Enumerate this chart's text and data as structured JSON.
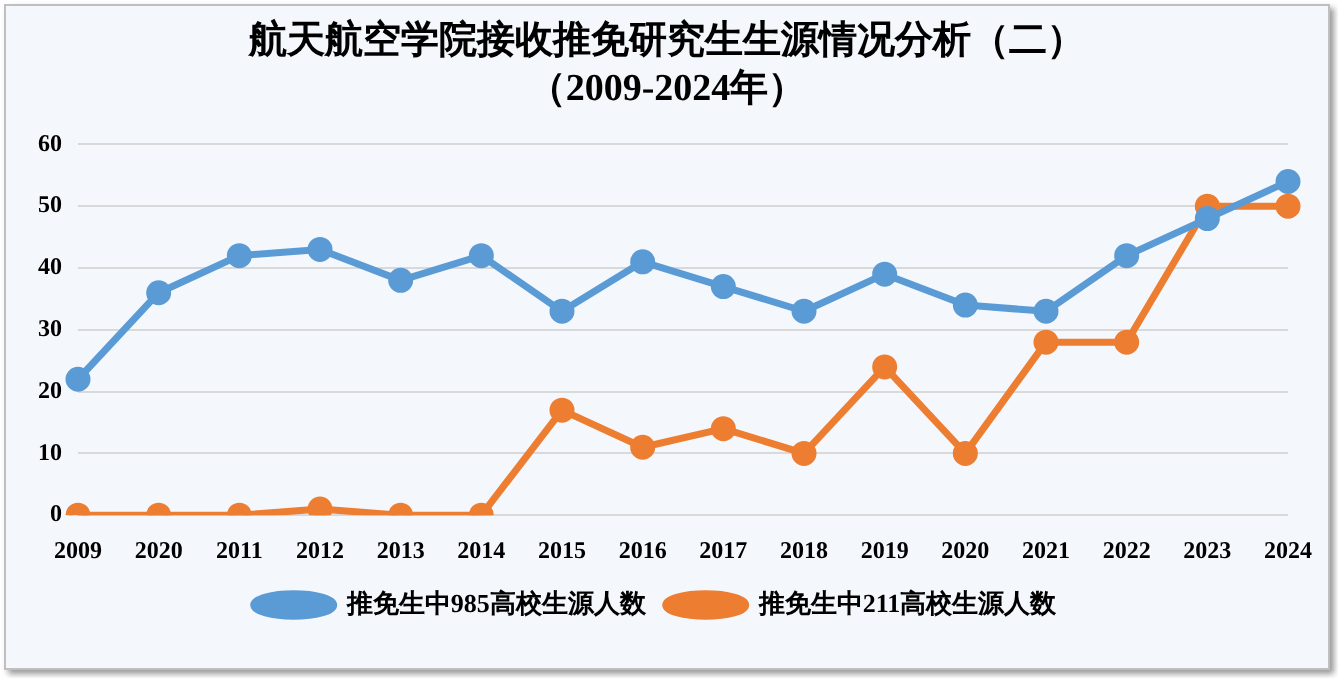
{
  "chart_data": {
    "type": "line",
    "title": "航天航空学院接收推免研究生生源情况分析（二）",
    "subtitle": "（2009-2024年）",
    "categories": [
      "2009",
      "2020",
      "2011",
      "2012",
      "2013",
      "2014",
      "2015",
      "2016",
      "2017",
      "2018",
      "2019",
      "2020",
      "2021",
      "2022",
      "2023",
      "2024"
    ],
    "series": [
      {
        "name": "推免生中985高校生源人数",
        "color": "#5b9bd5",
        "values": [
          22,
          36,
          42,
          43,
          38,
          42,
          33,
          41,
          37,
          33,
          39,
          34,
          33,
          42,
          48,
          54
        ]
      },
      {
        "name": "推免生中211高校生源人数",
        "color": "#ed7d31",
        "values": [
          0,
          0,
          0,
          1,
          0,
          0,
          17,
          11,
          14,
          10,
          24,
          10,
          28,
          28,
          50,
          50
        ]
      }
    ],
    "ylim": [
      0,
      60
    ],
    "yticks": [
      0,
      10,
      20,
      30,
      40,
      50,
      60
    ],
    "grid": "y",
    "legend": "bottom",
    "marker": "circle",
    "line_style": "solid"
  }
}
